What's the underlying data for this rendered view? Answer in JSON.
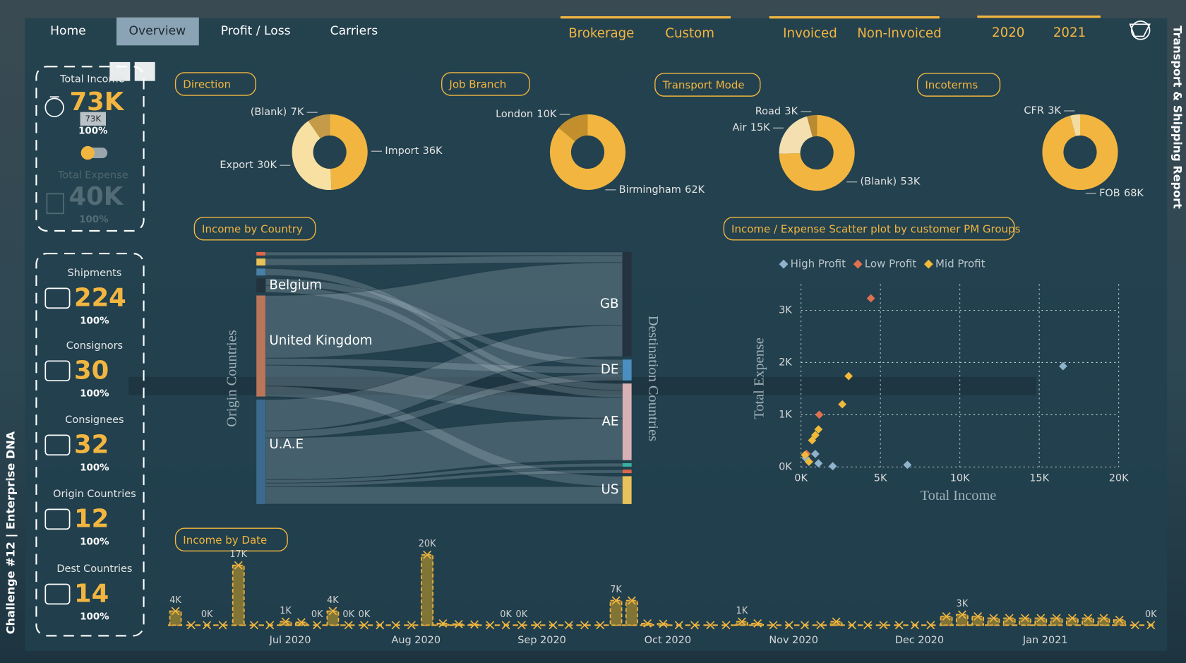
{
  "nav": [
    "Home",
    "Overview",
    "Profit / Loss",
    "Carriers"
  ],
  "slicers": [
    [
      "Brokerage",
      "Custom"
    ],
    [
      "Invoiced",
      "Non-Invoiced"
    ],
    [
      "2020",
      "2021"
    ]
  ],
  "side_title": "Transport & Shipping Report",
  "footer_title": "Challenge #12 | Enterprise DNA",
  "kpis_top": [
    {
      "label": "Total Income",
      "value": "73K",
      "percent": "100%",
      "tooltip": "73K"
    },
    {
      "label": "Total Expense",
      "value": "40K",
      "percent": "100%"
    }
  ],
  "kpis": [
    {
      "label": "Shipments",
      "value": "224",
      "percent": "100%"
    },
    {
      "label": "Consignors",
      "value": "30",
      "percent": "100%"
    },
    {
      "label": "Consignees",
      "value": "32",
      "percent": "100%"
    },
    {
      "label": "Origin Countries",
      "value": "12",
      "percent": "100%"
    },
    {
      "label": "Dest Countries",
      "value": "14",
      "percent": "100%"
    }
  ],
  "chart_data": [
    {
      "type": "pie",
      "title": "Direction",
      "categories": [
        "Import",
        "Export",
        "(Blank)"
      ],
      "values": [
        36000,
        30000,
        7000
      ],
      "value_labels": [
        "36K",
        "30K",
        "7K"
      ],
      "colors": [
        "#f2b640",
        "#f8e0a3",
        "#c59a48"
      ]
    },
    {
      "type": "pie",
      "title": "Job Branch",
      "categories": [
        "Birmingham",
        "London"
      ],
      "values": [
        62000,
        10000
      ],
      "value_labels": [
        "62K",
        "10K"
      ],
      "colors": [
        "#f2b640",
        "#c28f2c"
      ]
    },
    {
      "type": "pie",
      "title": "Transport Mode",
      "categories": [
        "(Blank)",
        "Air",
        "Road"
      ],
      "values": [
        53000,
        15000,
        3000
      ],
      "value_labels": [
        "53K",
        "15K",
        "3K"
      ],
      "colors": [
        "#f2b640",
        "#f3dfb0",
        "#b98a30"
      ]
    },
    {
      "type": "pie",
      "title": "Incoterms",
      "categories": [
        "FOB",
        "CFR"
      ],
      "values": [
        68000,
        3000
      ],
      "value_labels": [
        "68K",
        "3K"
      ],
      "colors": [
        "#f2b640",
        "#f3dca0"
      ]
    },
    {
      "type": "sankey",
      "title": "Income by Country",
      "source_label": "Origin Countries",
      "target_label": "Destination Countries",
      "sources": {
        "labels": [
          null,
          null,
          null,
          "Belgium",
          "United Kingdom",
          "U.A.E"
        ],
        "values": [
          1,
          2,
          2,
          4,
          29,
          30
        ],
        "colors": [
          "#e0664a",
          "#e8c25a",
          "#4a7fa8",
          "#23323d",
          "#b9765a",
          "#3c6a8f"
        ]
      },
      "targets": {
        "labels": [
          "GB",
          "DE",
          "AE",
          null,
          null,
          "US"
        ],
        "values": [
          30,
          6,
          22,
          1,
          1,
          8
        ],
        "colors": [
          "#24333f",
          "#4a8fc0",
          "#d8b1b5",
          "#3cb0a0",
          "#e0664a",
          "#e8c25a"
        ]
      },
      "links": [
        {
          "source": 0,
          "target": 0,
          "value": 1
        },
        {
          "source": 1,
          "target": 0,
          "value": 2
        },
        {
          "source": 2,
          "target": 2,
          "value": 2
        },
        {
          "source": 3,
          "target": 1,
          "value": 2
        },
        {
          "source": 3,
          "target": 2,
          "value": 2
        },
        {
          "source": 4,
          "target": 0,
          "value": 18
        },
        {
          "source": 4,
          "target": 1,
          "value": 2
        },
        {
          "source": 4,
          "target": 2,
          "value": 6
        },
        {
          "source": 4,
          "target": 5,
          "value": 3
        },
        {
          "source": 5,
          "target": 0,
          "value": 9
        },
        {
          "source": 5,
          "target": 1,
          "value": 2
        },
        {
          "source": 5,
          "target": 2,
          "value": 12
        },
        {
          "source": 5,
          "target": 3,
          "value": 1
        },
        {
          "source": 5,
          "target": 4,
          "value": 1
        },
        {
          "source": 5,
          "target": 5,
          "value": 5
        }
      ]
    },
    {
      "type": "scatter",
      "title": "Income / Expense Scatter plot by customer PM Groups",
      "xlabel": "Total Income",
      "ylabel": "Total Expense",
      "xlim": [
        0,
        20000
      ],
      "xticks": [
        {
          "value": 0,
          "label": "0K"
        },
        {
          "value": 5000,
          "label": "5K"
        },
        {
          "value": 10000,
          "label": "10K"
        },
        {
          "value": 15000,
          "label": "15K"
        },
        {
          "value": 20000,
          "label": "20K"
        }
      ],
      "ylim": [
        0,
        3500
      ],
      "yticks": [
        {
          "value": 0,
          "label": "0K"
        },
        {
          "value": 1000,
          "label": "1K"
        },
        {
          "value": 2000,
          "label": "2K"
        },
        {
          "value": 3000,
          "label": "3K"
        }
      ],
      "grid": true,
      "legend": "top",
      "series": [
        {
          "name": "High Profit",
          "color": "#8fb3cc",
          "x": [
            16500,
            6700,
            2000,
            900,
            500,
            300,
            1100
          ],
          "values": [
            1930,
            40,
            15,
            250,
            100,
            170,
            70
          ]
        },
        {
          "name": "Low Profit",
          "color": "#e0704f",
          "x": [
            4400,
            1150,
            350
          ],
          "values": [
            3230,
            1000,
            250
          ]
        },
        {
          "name": "Mid Profit",
          "color": "#f0b93a",
          "x": [
            3000,
            2600,
            1100,
            900,
            700,
            250,
            500
          ],
          "values": [
            1740,
            1200,
            720,
            610,
            510,
            230,
            100
          ]
        }
      ]
    },
    {
      "type": "bar",
      "title": "Income by Date",
      "color": "#f2b640",
      "categories": [
        null,
        null,
        null,
        null,
        null,
        null,
        null,
        "Jul 2020",
        null,
        null,
        null,
        null,
        null,
        null,
        null,
        "Aug 2020",
        null,
        null,
        null,
        null,
        null,
        null,
        null,
        "Sep 2020",
        null,
        null,
        null,
        null,
        null,
        null,
        null,
        "Oct 2020",
        null,
        null,
        null,
        null,
        null,
        null,
        null,
        "Nov 2020",
        null,
        null,
        null,
        null,
        null,
        null,
        null,
        "Dec 2020",
        null,
        null,
        null,
        null,
        null,
        null,
        null,
        "Jan 2021",
        null,
        null,
        null,
        null,
        null,
        null,
        null
      ],
      "values": [
        4000,
        0,
        0,
        0,
        17000,
        0,
        0,
        1000,
        800,
        0,
        4000,
        0,
        0,
        0,
        0,
        0,
        20000,
        500,
        300,
        200,
        0,
        0,
        0,
        0,
        0,
        0,
        0,
        0,
        7000,
        7000,
        500,
        400,
        0,
        0,
        0,
        0,
        1000,
        500,
        0,
        0,
        0,
        0,
        1000,
        0,
        0,
        0,
        0,
        0,
        0,
        2500,
        3000,
        2500,
        2000,
        2000,
        2000,
        2000,
        2000,
        2000,
        2000,
        2000,
        1500,
        0,
        0
      ],
      "value_labels": [
        "4K",
        null,
        "0K",
        null,
        "17K",
        null,
        null,
        "1K",
        null,
        "0K",
        "4K",
        "0K",
        "0K",
        null,
        null,
        null,
        "20K",
        null,
        null,
        null,
        null,
        "0K",
        "0K",
        null,
        null,
        null,
        null,
        null,
        "7K",
        null,
        null,
        null,
        null,
        null,
        null,
        null,
        "1K",
        null,
        null,
        null,
        null,
        null,
        null,
        null,
        null,
        null,
        null,
        null,
        null,
        null,
        "3K",
        null,
        null,
        null,
        null,
        null,
        null,
        null,
        null,
        null,
        null,
        null,
        "0K"
      ]
    }
  ]
}
